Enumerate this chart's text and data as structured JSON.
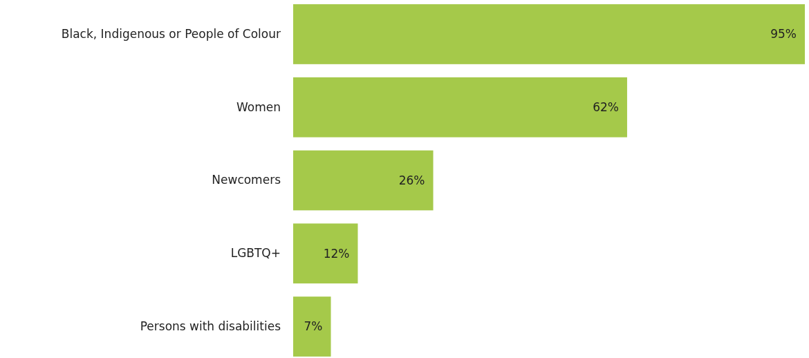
{
  "chart_data": {
    "type": "bar",
    "orientation": "horizontal",
    "categories": [
      "Black, Indigenous or People of Colour",
      "Women",
      "Newcomers",
      "LGBTQ+",
      "Persons with disabilities"
    ],
    "values": [
      95,
      62,
      26,
      12,
      7
    ],
    "color": "#a5c94a",
    "value_labels": [
      "95%",
      "62%",
      "26%",
      "12%",
      "7%"
    ]
  }
}
